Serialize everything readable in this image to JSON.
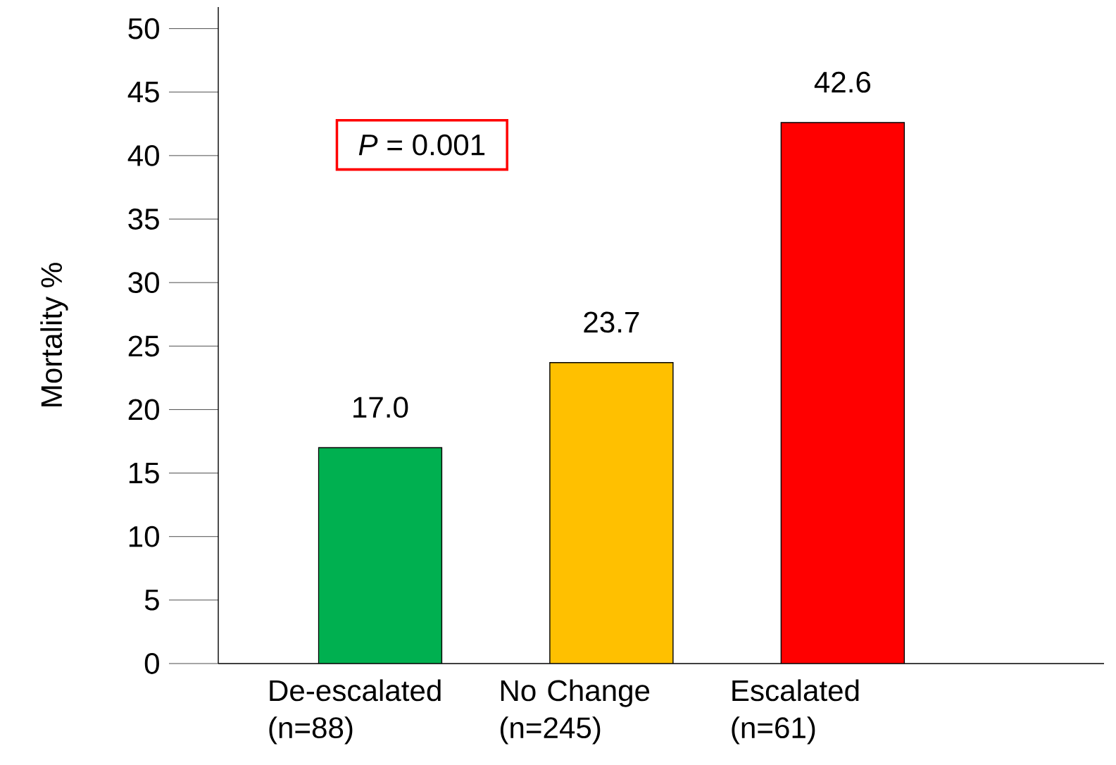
{
  "chart_data": {
    "type": "bar",
    "ylabel": "Mortality %",
    "categories": [
      "De-escalated (n=88)",
      "No Change (n=245)",
      "Escalated (n=61)"
    ],
    "values": [
      17.0,
      23.7,
      42.6
    ],
    "colors": [
      "#00b050",
      "#ffc000",
      "#ff0000"
    ],
    "ylim": [
      0,
      51.7
    ],
    "yticks": [
      0,
      5,
      10,
      15,
      20,
      25,
      30,
      35,
      40,
      45,
      50
    ],
    "value_labels": [
      "17.0",
      "23.7",
      "42.6"
    ],
    "grid": false,
    "annotations": [
      "*P* = 0.001"
    ]
  }
}
